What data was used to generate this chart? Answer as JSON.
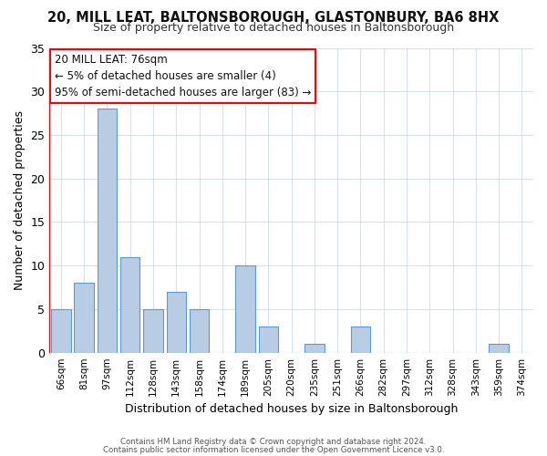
{
  "title": "20, MILL LEAT, BALTONSBOROUGH, GLASTONBURY, BA6 8HX",
  "subtitle": "Size of property relative to detached houses in Baltonsborough",
  "xlabel": "Distribution of detached houses by size in Baltonsborough",
  "ylabel": "Number of detached properties",
  "bar_labels": [
    "66sqm",
    "81sqm",
    "97sqm",
    "112sqm",
    "128sqm",
    "143sqm",
    "158sqm",
    "174sqm",
    "189sqm",
    "205sqm",
    "220sqm",
    "235sqm",
    "251sqm",
    "266sqm",
    "282sqm",
    "297sqm",
    "312sqm",
    "328sqm",
    "343sqm",
    "359sqm",
    "374sqm"
  ],
  "bar_values": [
    5,
    8,
    28,
    11,
    5,
    7,
    5,
    0,
    10,
    3,
    0,
    1,
    0,
    3,
    0,
    0,
    0,
    0,
    0,
    1,
    0
  ],
  "bar_color": "#b8cce4",
  "bar_edge_color": "#5b9bd5",
  "highlight_color": "#ff0000",
  "ylim": [
    0,
    35
  ],
  "yticks": [
    0,
    5,
    10,
    15,
    20,
    25,
    30,
    35
  ],
  "annotation_title": "20 MILL LEAT: 76sqm",
  "annotation_line1": "← 5% of detached houses are smaller (4)",
  "annotation_line2": "95% of semi-detached houses are larger (83) →",
  "annotation_box_color": "#ffffff",
  "annotation_box_edge": "#ff0000",
  "footer_line1": "Contains HM Land Registry data © Crown copyright and database right 2024.",
  "footer_line2": "Contains public sector information licensed under the Open Government Licence v3.0.",
  "bg_color": "#ffffff",
  "grid_color": "#d4e2ef"
}
